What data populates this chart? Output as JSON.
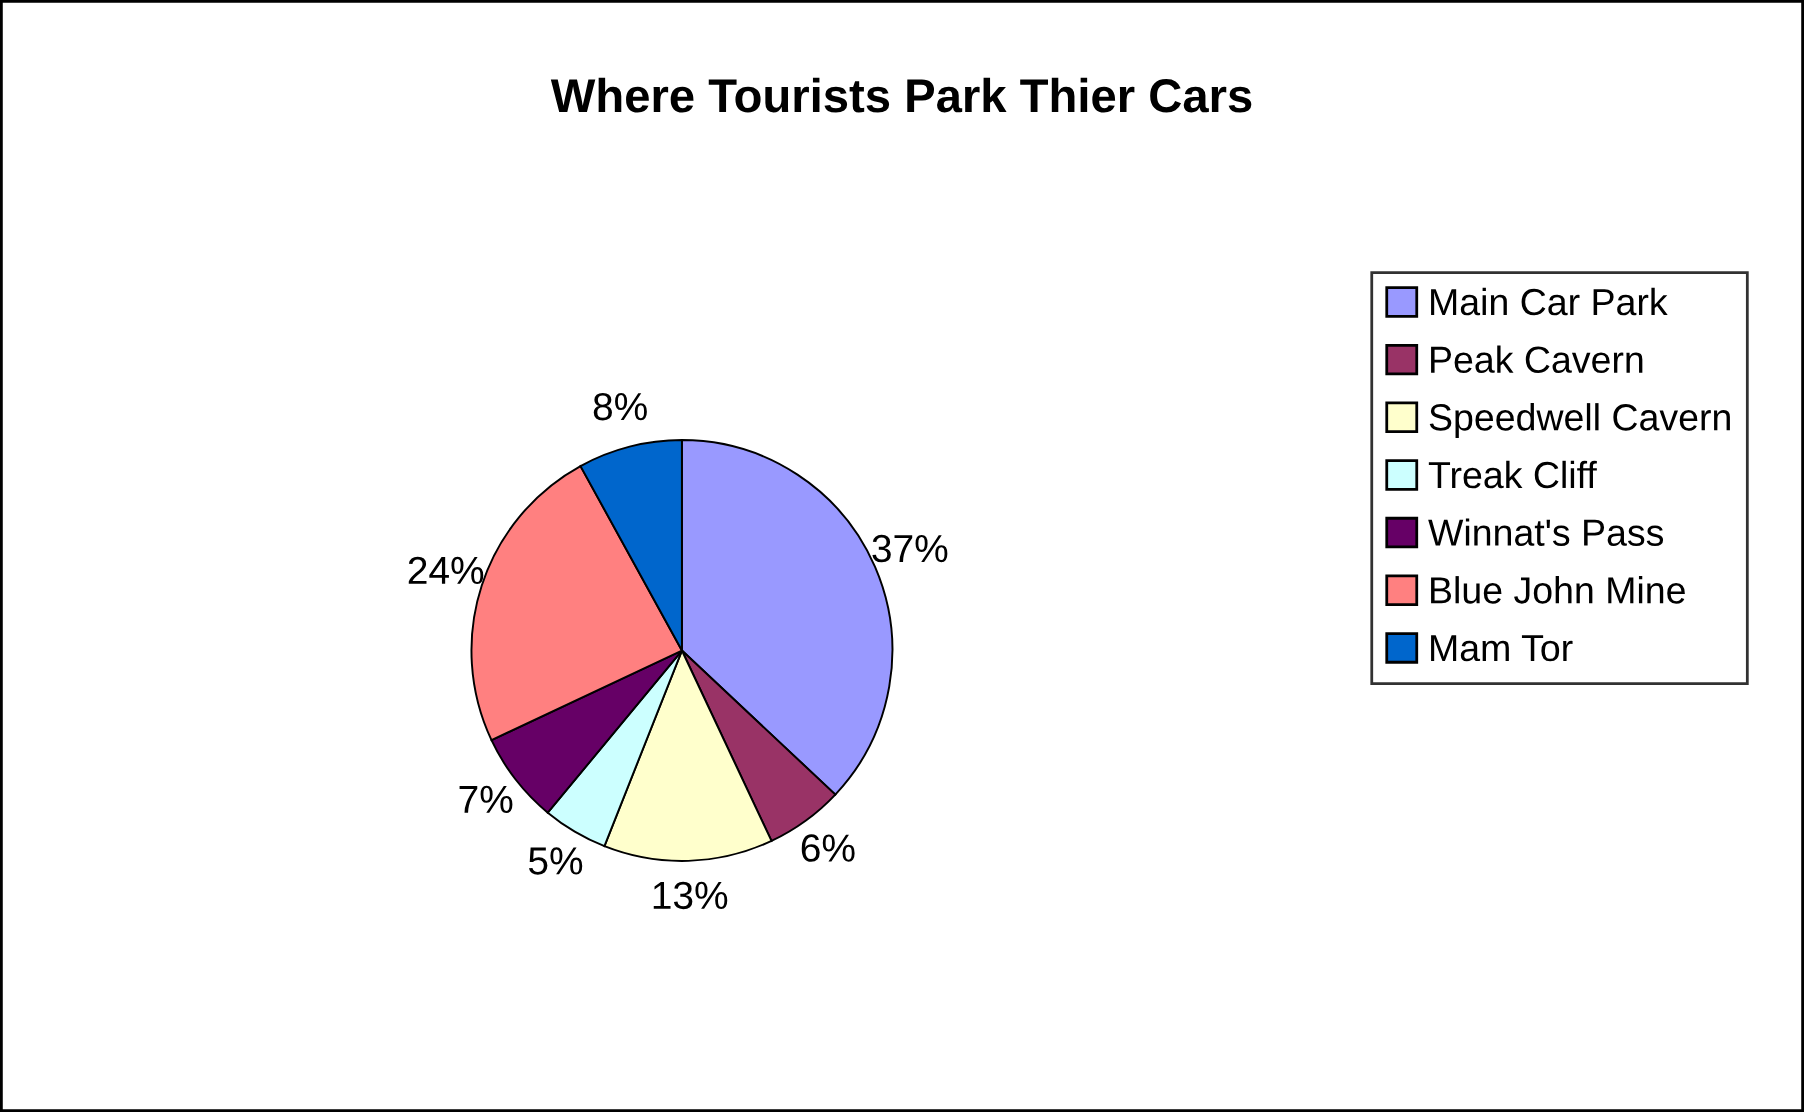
{
  "chart_data": {
    "type": "pie",
    "title": "Where Tourists Park Thier Cars",
    "categories": [
      "Main Car Park",
      "Peak Cavern",
      "Speedwell Cavern",
      "Treak Cliff",
      "Winnat's Pass",
      "Blue John Mine",
      "Mam Tor"
    ],
    "values": [
      37,
      6,
      13,
      5,
      7,
      24,
      8
    ],
    "colors": [
      "#9999ff",
      "#993366",
      "#ffffcc",
      "#ccffff",
      "#660066",
      "#ff8080",
      "#0066cc"
    ],
    "value_labels": [
      "37%",
      "6%",
      "13%",
      "5%",
      "7%",
      "24%",
      "8%"
    ],
    "legend": "right"
  }
}
